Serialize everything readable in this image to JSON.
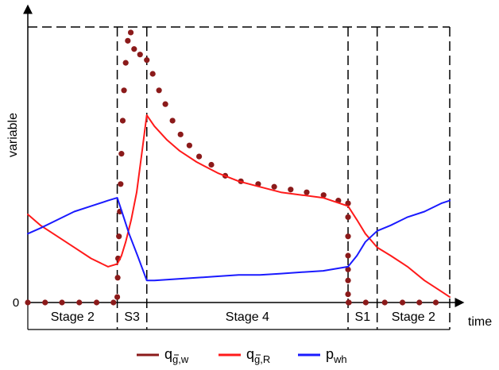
{
  "chart_data": {
    "type": "line",
    "ylabel": "variable",
    "xlabel": "time",
    "y_zero_label": "0",
    "xlim": [
      0,
      100
    ],
    "ylim": [
      0,
      100
    ],
    "grid": false,
    "legend_position": "bottom",
    "stage_boundaries": [
      0,
      21.2,
      28.2,
      75.9,
      82.8,
      100
    ],
    "stage_labels": [
      "Stage 2",
      "S3",
      "Stage 4",
      "S1",
      "Stage 2"
    ],
    "series": [
      {
        "name": "q",
        "name_sub": "g,w",
        "name_sup_bar": true,
        "color": "#8b1a1a",
        "style": "dots",
        "x": [
          0,
          4.1,
          8.1,
          12.2,
          16.3,
          20.3,
          21.2,
          21.3,
          21.4,
          21.6,
          21.8,
          22.0,
          22.2,
          22.5,
          22.8,
          23.2,
          23.7,
          24.4,
          25.2,
          26.6,
          28.2,
          29.6,
          31.1,
          32.6,
          34.3,
          36.2,
          38.3,
          40.6,
          43.5,
          46.8,
          50.5,
          54.6,
          58.4,
          62.3,
          66.1,
          70.1,
          73.6,
          75.9,
          75.9,
          75.9,
          75.9,
          75.9,
          75.9,
          75.9,
          76.0,
          76.1,
          80.1,
          84.6,
          88.8,
          92.8,
          96.7
        ],
        "y": [
          0,
          0,
          0,
          0,
          0,
          0,
          2,
          9,
          16,
          24,
          33,
          43,
          54,
          66,
          77,
          87,
          95,
          98,
          92,
          90,
          88,
          83,
          77,
          72,
          66,
          61,
          57,
          53,
          50,
          46,
          44,
          43,
          42,
          41,
          40,
          39,
          37,
          36,
          31,
          24,
          17,
          12,
          8,
          3,
          0,
          0,
          0,
          0,
          0,
          0,
          0
        ]
      },
      {
        "name": "q",
        "name_sub": "g,R",
        "name_sup_bar": true,
        "color": "#ff1a1a",
        "style": "line",
        "x": [
          0,
          3,
          7,
          11,
          15,
          19,
          21.2,
          22.2,
          23.2,
          24.5,
          25.8,
          27,
          28.2,
          30,
          33,
          36,
          40,
          45,
          50,
          55,
          60,
          65,
          70,
          75.9,
          78,
          80,
          82.8,
          86,
          90,
          94,
          98,
          100
        ],
        "y": [
          32,
          28,
          24,
          20,
          16,
          13,
          14,
          17,
          22,
          30,
          40,
          54,
          68,
          64,
          59,
          55,
          51,
          47,
          44,
          42,
          40,
          39,
          38,
          35,
          30,
          25,
          20,
          17,
          13,
          8,
          4,
          2
        ]
      },
      {
        "name": "p",
        "name_sub": "wh",
        "name_sup_bar": false,
        "color": "#1a1aff",
        "style": "line",
        "x": [
          0,
          3,
          7,
          11,
          15,
          19,
          21.2,
          22.5,
          24,
          26,
          28.2,
          30,
          35,
          40,
          45,
          50,
          55,
          60,
          65,
          70,
          75.9,
          78,
          80,
          82.8,
          86,
          90,
          94,
          98,
          100
        ],
        "y": [
          25,
          27,
          30,
          33,
          35,
          37,
          38,
          32,
          25,
          17,
          8,
          8,
          8.5,
          9,
          9.5,
          10,
          10,
          10.5,
          11,
          11.5,
          13,
          17,
          22,
          26,
          28,
          31,
          33,
          36,
          37
        ]
      }
    ]
  }
}
